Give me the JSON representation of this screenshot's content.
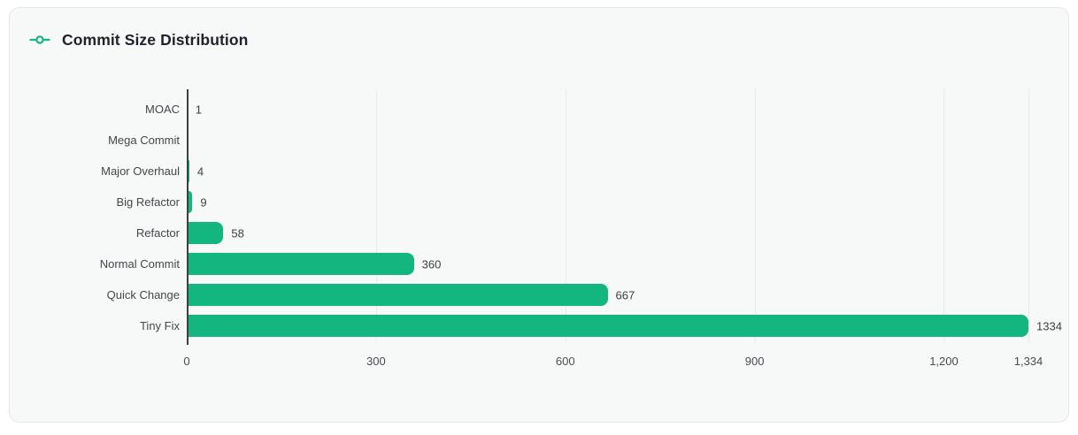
{
  "card": {
    "title": "Commit Size Distribution",
    "icon": "git-commit-icon"
  },
  "colors": {
    "bar": "#14b67f",
    "icon_stroke": "#17b67e",
    "card_bg": "#f7f8f8",
    "card_border": "#e6e7e8",
    "axis_line": "#3d3f41",
    "gridline": "#e9eaeb",
    "title_text": "#1d222d",
    "label_text": "#44474b",
    "value_text": "#3d4043",
    "tick_text": "#4a4d52"
  },
  "chart_data": {
    "type": "bar",
    "orientation": "horizontal",
    "title": "Commit Size Distribution",
    "categories": [
      "MOAC",
      "Mega Commit",
      "Major Overhaul",
      "Big Refactor",
      "Refactor",
      "Normal Commit",
      "Quick Change",
      "Tiny Fix"
    ],
    "values": [
      1,
      0,
      4,
      9,
      58,
      360,
      667,
      1334
    ],
    "value_labels": [
      "1",
      "",
      "4",
      "9",
      "58",
      "360",
      "667",
      "1334"
    ],
    "x_ticks": [
      {
        "value": 0,
        "label": "0"
      },
      {
        "value": 300,
        "label": "300"
      },
      {
        "value": 600,
        "label": "600"
      },
      {
        "value": 900,
        "label": "900"
      },
      {
        "value": 1200,
        "label": "1,200"
      },
      {
        "value": 1334,
        "label": "1,334"
      }
    ],
    "xlim": [
      0,
      1334
    ],
    "xlabel": "",
    "ylabel": "",
    "grid": "vertical",
    "legend": "none",
    "bar_color": "#14b67f"
  }
}
